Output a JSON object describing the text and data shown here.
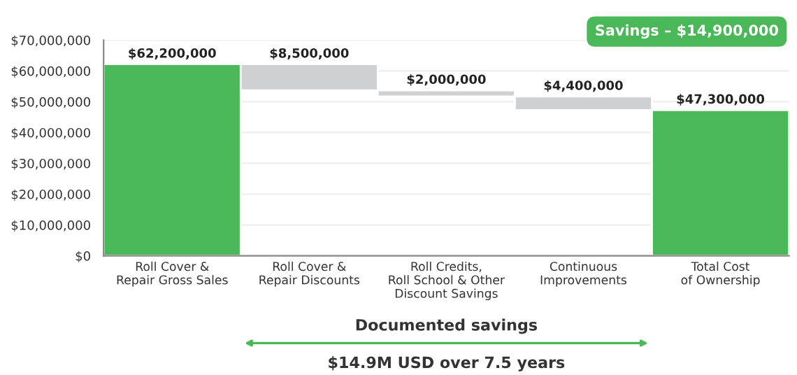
{
  "chart_data": {
    "type": "bar",
    "categories": [
      "Roll Cover &\nRepair Gross Sales",
      "Roll Cover &\nRepair Discounts",
      "Roll Credits,\nRoll School & Other\nDiscount Savings",
      "Continuous\nImprovements",
      "Total Cost\nof Ownership"
    ],
    "values": [
      62200000,
      8500000,
      2000000,
      4400000,
      47300000
    ],
    "base": [
      0,
      53700000,
      51700000,
      47300000,
      0
    ],
    "colors": [
      "#4ab858",
      "#cfd0d2",
      "#cfd0d2",
      "#cfd0d2",
      "#4ab858"
    ],
    "value_labels": [
      "$62,200,000",
      "$8,500,000",
      "$2,000,000",
      "$4,400,000",
      "$47,300,000"
    ],
    "ylim": [
      0,
      70000000
    ],
    "yticks": [
      {
        "value": 0,
        "label": "$0"
      },
      {
        "value": 10000000,
        "label": "$10,000,000"
      },
      {
        "value": 20000000,
        "label": "$20,000,000"
      },
      {
        "value": 30000000,
        "label": "$30,000,000"
      },
      {
        "value": 40000000,
        "label": "$40,000,000"
      },
      {
        "value": 50000000,
        "label": "$50,000,000"
      },
      {
        "value": 60000000,
        "label": "$60,000,000"
      },
      {
        "value": 70000000,
        "label": "$70,000,000"
      }
    ],
    "grid": "y",
    "annotations": [
      "Savings – $14,900,000",
      "Documented savings",
      "$14.9M USD over 7.5 years"
    ]
  }
}
